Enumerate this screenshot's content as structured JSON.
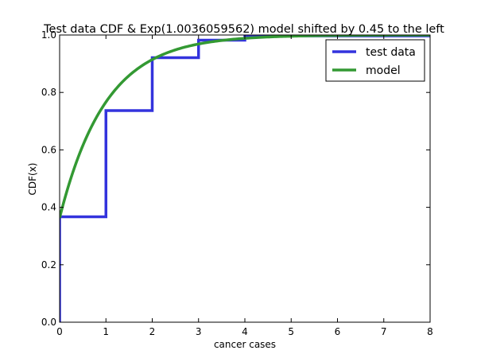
{
  "chart_data": {
    "type": "line",
    "title": "Test data CDF & Exp(1.0036059562) model shifted by 0.45 to the left",
    "xlabel": "cancer cases",
    "ylabel": "CDF(x)",
    "xlim": [
      0,
      8
    ],
    "ylim": [
      0,
      1.0
    ],
    "grid": false,
    "legend_position": "top-right",
    "x_ticks": [
      "0",
      "1",
      "2",
      "3",
      "4",
      "5",
      "6",
      "7",
      "8"
    ],
    "y_ticks": [
      "0.0",
      "0.2",
      "0.4",
      "0.6",
      "0.8",
      "1.0"
    ],
    "series": [
      {
        "name": "test data",
        "style": "step",
        "color": "#3333dd",
        "x": [
          0,
          0,
          1,
          1,
          2,
          2,
          3,
          3,
          4,
          4,
          8
        ],
        "y": [
          0.0,
          0.367,
          0.367,
          0.737,
          0.737,
          0.921,
          0.921,
          0.982,
          0.982,
          0.997,
          0.997
        ]
      },
      {
        "name": "model",
        "style": "line",
        "color": "#339933",
        "rate": 1.0036059562,
        "shift": 0.45
      }
    ]
  }
}
